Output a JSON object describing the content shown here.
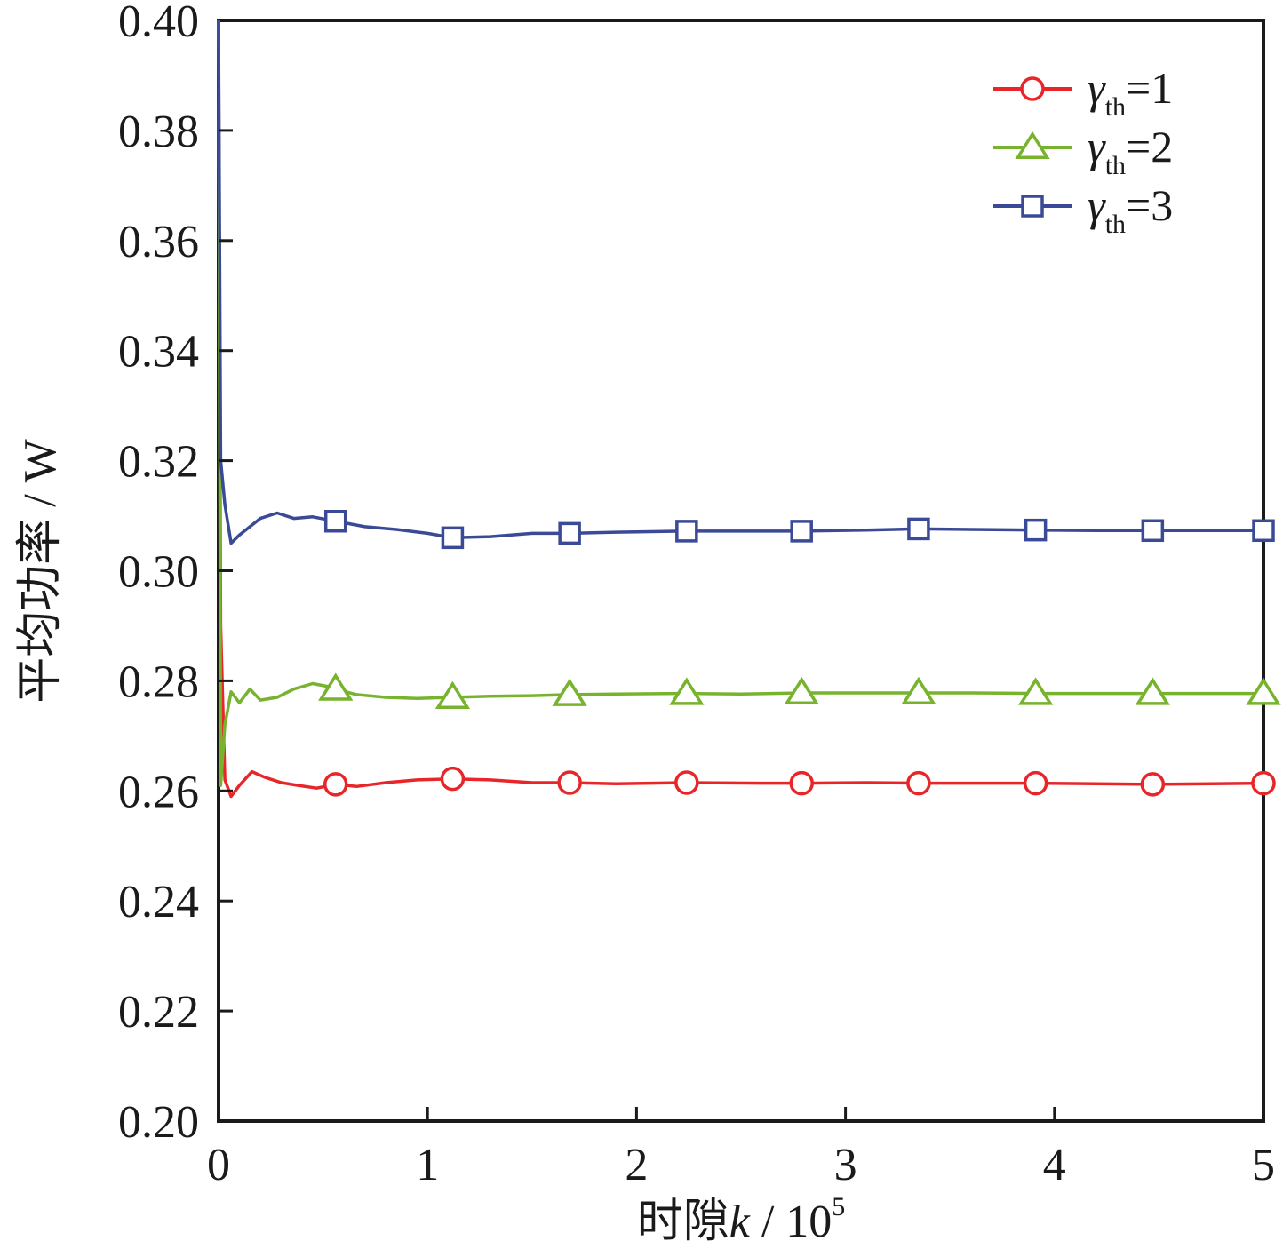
{
  "chart_data": {
    "type": "line",
    "xlabel": {
      "prefix": "时隙",
      "var": "k",
      "unit": " / 10",
      "exp": "5"
    },
    "ylabel": "平均功率 / W",
    "xlim": [
      0,
      5
    ],
    "ylim": [
      0.2,
      0.4
    ],
    "xticks": [
      "0",
      "1",
      "2",
      "3",
      "4",
      "5"
    ],
    "yticks": [
      "0.20",
      "0.22",
      "0.24",
      "0.26",
      "0.28",
      "0.30",
      "0.32",
      "0.34",
      "0.36",
      "0.38",
      "0.40"
    ],
    "grid": false,
    "legend_position": "top-right",
    "series": [
      {
        "name": "γth=1",
        "legend": {
          "symbol": "γ",
          "sub": "th",
          "eq": "=1"
        },
        "color": "#e8262a",
        "marker": "circle",
        "x": [
          0,
          0.01,
          0.03,
          0.06,
          0.1,
          0.16,
          0.22,
          0.3,
          0.38,
          0.47,
          0.56,
          0.66,
          0.8,
          0.95,
          1.12,
          1.3,
          1.5,
          1.68,
          1.9,
          2.24,
          2.6,
          2.79,
          3.1,
          3.35,
          3.7,
          3.91,
          4.2,
          4.47,
          4.75,
          5.0
        ],
        "y": [
          0.4,
          0.29,
          0.262,
          0.259,
          0.261,
          0.2635,
          0.2625,
          0.2615,
          0.261,
          0.2605,
          0.2612,
          0.2608,
          0.2615,
          0.262,
          0.2622,
          0.262,
          0.2615,
          0.2615,
          0.2613,
          0.2615,
          0.2614,
          0.2614,
          0.2615,
          0.2614,
          0.2614,
          0.2614,
          0.2613,
          0.2612,
          0.2613,
          0.2614
        ],
        "markers_x": [
          0.56,
          1.12,
          1.68,
          2.24,
          2.79,
          3.35,
          3.91,
          4.47,
          5.0
        ],
        "markers_y": [
          0.2612,
          0.2622,
          0.2615,
          0.2615,
          0.2614,
          0.2614,
          0.2614,
          0.2612,
          0.2614
        ]
      },
      {
        "name": "γth=2",
        "legend": {
          "symbol": "γ",
          "sub": "th",
          "eq": "=2"
        },
        "color": "#78b32e",
        "marker": "triangle",
        "x": [
          0,
          0.01,
          0.03,
          0.06,
          0.1,
          0.15,
          0.2,
          0.28,
          0.36,
          0.45,
          0.52,
          0.56,
          0.66,
          0.8,
          0.95,
          1.12,
          1.3,
          1.5,
          1.68,
          1.9,
          2.24,
          2.5,
          2.79,
          3.1,
          3.35,
          3.6,
          3.91,
          4.2,
          4.47,
          4.75,
          5.0
        ],
        "y": [
          0.4,
          0.261,
          0.272,
          0.278,
          0.276,
          0.2785,
          0.2765,
          0.277,
          0.2785,
          0.2795,
          0.279,
          0.2785,
          0.2775,
          0.277,
          0.2768,
          0.277,
          0.2772,
          0.2773,
          0.2775,
          0.2776,
          0.2777,
          0.2776,
          0.2778,
          0.2778,
          0.2778,
          0.2778,
          0.2777,
          0.2777,
          0.2777,
          0.2777,
          0.2777
        ],
        "markers_x": [
          0.56,
          1.12,
          1.68,
          2.24,
          2.79,
          3.35,
          3.91,
          4.47,
          5.0
        ],
        "markers_y": [
          0.2785,
          0.277,
          0.2775,
          0.2777,
          0.2778,
          0.2778,
          0.2777,
          0.2777,
          0.2777
        ]
      },
      {
        "name": "γth=3",
        "legend": {
          "symbol": "γ",
          "sub": "th",
          "eq": "=3"
        },
        "color": "#3a4a96",
        "marker": "square",
        "x": [
          0,
          0.01,
          0.03,
          0.06,
          0.1,
          0.15,
          0.2,
          0.28,
          0.36,
          0.45,
          0.56,
          0.7,
          0.85,
          1.0,
          1.12,
          1.3,
          1.5,
          1.68,
          1.9,
          2.24,
          2.5,
          2.79,
          3.1,
          3.35,
          3.6,
          3.91,
          4.2,
          4.47,
          4.75,
          5.0
        ],
        "y": [
          0.4,
          0.32,
          0.312,
          0.305,
          0.3065,
          0.308,
          0.3095,
          0.3105,
          0.3095,
          0.3098,
          0.309,
          0.308,
          0.3075,
          0.3068,
          0.306,
          0.3062,
          0.3068,
          0.3068,
          0.307,
          0.3072,
          0.3072,
          0.3072,
          0.3074,
          0.3076,
          0.3075,
          0.3074,
          0.3073,
          0.3073,
          0.3073,
          0.3073
        ],
        "markers_x": [
          0.56,
          1.12,
          1.68,
          2.24,
          2.79,
          3.35,
          3.91,
          4.47,
          5.0
        ],
        "markers_y": [
          0.309,
          0.306,
          0.3068,
          0.3072,
          0.3072,
          0.3076,
          0.3074,
          0.3073,
          0.3073
        ]
      }
    ]
  }
}
